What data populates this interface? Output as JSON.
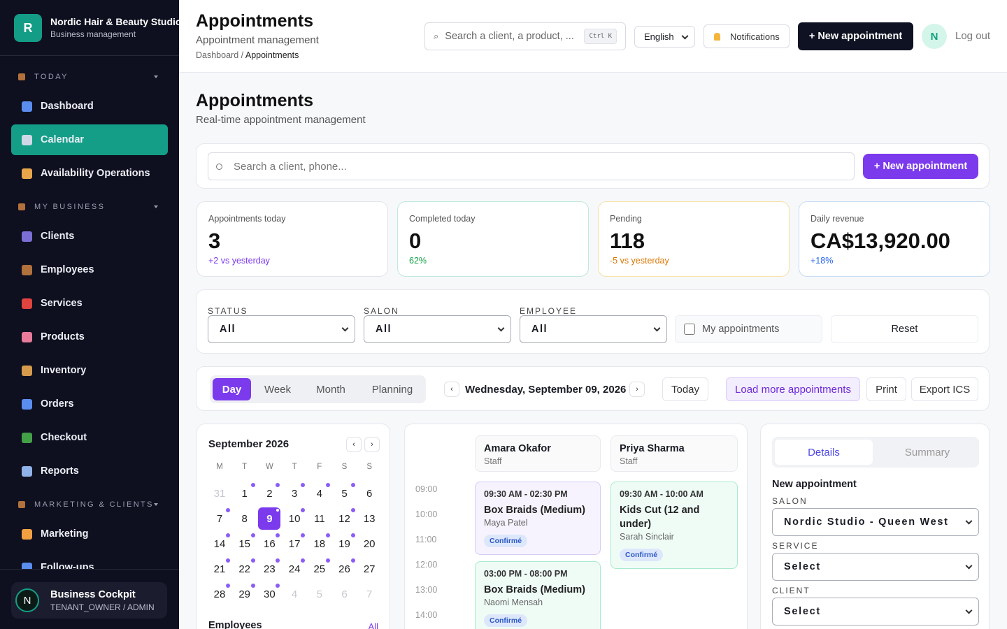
{
  "sidebar": {
    "brand": {
      "initial": "R",
      "name": "Nordic Hair & Beauty Studio",
      "subtitle": "Business management"
    },
    "sections": [
      {
        "title": "TODAY",
        "items": [
          {
            "label": "Dashboard",
            "icon": "#5b8def"
          },
          {
            "label": "Calendar",
            "icon": "#cfd8e6",
            "active": true
          },
          {
            "label": "Availability Operations",
            "icon": "#e8a64b"
          }
        ]
      },
      {
        "title": "MY BUSINESS",
        "items": [
          {
            "label": "Clients",
            "icon": "#7b6fd6"
          },
          {
            "label": "Employees",
            "icon": "#b0713c"
          },
          {
            "label": "Services",
            "icon": "#e0443e"
          },
          {
            "label": "Products",
            "icon": "#e87a9a"
          },
          {
            "label": "Inventory",
            "icon": "#d69a4c"
          },
          {
            "label": "Orders",
            "icon": "#5b8def"
          },
          {
            "label": "Checkout",
            "icon": "#43a047"
          },
          {
            "label": "Reports",
            "icon": "#8fb3e8"
          }
        ]
      },
      {
        "title": "MARKETING & CLIENTS",
        "items": [
          {
            "label": "Marketing",
            "icon": "#f0a040"
          },
          {
            "label": "Follow-ups",
            "icon": "#5b8def"
          }
        ]
      }
    ],
    "user": {
      "initial": "N",
      "name": "Business Cockpit",
      "role": "TENANT_OWNER / ADMIN"
    }
  },
  "topbar": {
    "title": "Appointments",
    "subtitle": "Appointment management",
    "breadcrumb": [
      "Dashboard",
      "Appointments"
    ],
    "search_placeholder": "Search a client, a product, ...",
    "shortcut": "Ctrl K",
    "language": "English",
    "notifications": "Notifications",
    "new_button": "+ New appointment",
    "avatar": "N",
    "logout": "Log out"
  },
  "page": {
    "title": "Appointments",
    "subtitle": "Real-time appointment management"
  },
  "search": {
    "placeholder": "Search a client, phone...",
    "button": "+ New appointment"
  },
  "stats": [
    {
      "label": "Appointments today",
      "value": "3",
      "note": "+2 vs yesterday",
      "color": "#7c3aed",
      "border": "#e3e5ea"
    },
    {
      "label": "Completed today",
      "value": "0",
      "note": "62%",
      "color": "#16a34a",
      "border": "#bfe9dd"
    },
    {
      "label": "Pending",
      "value": "118",
      "note": "-5 vs yesterday",
      "color": "#d97706",
      "border": "#f5e2a8"
    },
    {
      "label": "Daily revenue",
      "value": "CA$13,920.00",
      "note": "+18%",
      "color": "#2563eb",
      "border": "#c8dcf5"
    }
  ],
  "filters": {
    "selects": [
      {
        "label": "STATUS",
        "value": "All"
      },
      {
        "label": "SALON",
        "value": "All"
      },
      {
        "label": "EMPLOYEE",
        "value": "All"
      }
    ],
    "checkbox": "My appointments",
    "reset": "Reset"
  },
  "toolbar": {
    "views": [
      "Day",
      "Week",
      "Month",
      "Planning"
    ],
    "active_view": 0,
    "date": "Wednesday, September 09, 2026",
    "today": "Today",
    "load_more": "Load more appointments",
    "print": "Print",
    "export": "Export ICS"
  },
  "mini_calendar": {
    "title": "September 2026",
    "weekdays": [
      "M",
      "T",
      "W",
      "T",
      "F",
      "S",
      "S"
    ],
    "days": [
      {
        "day": 31,
        "muted": true
      },
      {
        "day": 1,
        "dot": true
      },
      {
        "day": 2,
        "dot": true
      },
      {
        "day": 3,
        "dot": true
      },
      {
        "day": 4,
        "dot": true
      },
      {
        "day": 5,
        "dot": true
      },
      {
        "day": 6
      },
      {
        "day": 7,
        "dot": true
      },
      {
        "day": 8
      },
      {
        "day": 9,
        "dot": true,
        "selected": true
      },
      {
        "day": 10,
        "dot": true
      },
      {
        "day": 11
      },
      {
        "day": 12,
        "dot": true
      },
      {
        "day": 13
      },
      {
        "day": 14,
        "dot": true
      },
      {
        "day": 15,
        "dot": true
      },
      {
        "day": 16,
        "dot": true
      },
      {
        "day": 17,
        "dot": true
      },
      {
        "day": 18,
        "dot": true
      },
      {
        "day": 19,
        "dot": true
      },
      {
        "day": 20
      },
      {
        "day": 21,
        "dot": true
      },
      {
        "day": 22,
        "dot": true
      },
      {
        "day": 23,
        "dot": true
      },
      {
        "day": 24,
        "dot": true
      },
      {
        "day": 25,
        "dot": true
      },
      {
        "day": 26,
        "dot": true
      },
      {
        "day": 27
      },
      {
        "day": 28,
        "dot": true
      },
      {
        "day": 29,
        "dot": true
      },
      {
        "day": 30,
        "dot": true
      },
      {
        "day": 4,
        "muted": true
      },
      {
        "day": 5,
        "muted": true
      },
      {
        "day": 6,
        "muted": true
      },
      {
        "day": 7,
        "muted": true
      }
    ],
    "employees_title": "Employees",
    "employees_link": "All"
  },
  "schedule": {
    "hours": [
      "09:00",
      "10:00",
      "11:00",
      "12:00",
      "13:00",
      "14:00"
    ],
    "staff": [
      {
        "name": "Amara Okafor",
        "role": "Staff",
        "appointments": [
          {
            "time": "09:30 AM - 02:30 PM",
            "service": "Box Braids (Medium)",
            "client": "Maya Patel",
            "status": "Confirmé",
            "color": "purple"
          },
          {
            "time": "03:00 PM - 08:00 PM",
            "service": "Box Braids (Medium)",
            "client": "Naomi Mensah",
            "status": "Confirmé",
            "color": "green"
          }
        ]
      },
      {
        "name": "Priya Sharma",
        "role": "Staff",
        "appointments": [
          {
            "time": "09:30 AM - 10:00 AM",
            "service": "Kids Cut (12 and under)",
            "client": "Sarah Sinclair",
            "status": "Confirmé",
            "color": "green"
          }
        ]
      }
    ]
  },
  "details": {
    "tabs": [
      "Details",
      "Summary"
    ],
    "active_tab": 0,
    "heading": "New appointment",
    "fields": [
      {
        "label": "SALON",
        "value": "Nordic Studio - Queen West"
      },
      {
        "label": "SERVICE",
        "value": "Select"
      },
      {
        "label": "CLIENT",
        "value": "Select"
      }
    ]
  }
}
